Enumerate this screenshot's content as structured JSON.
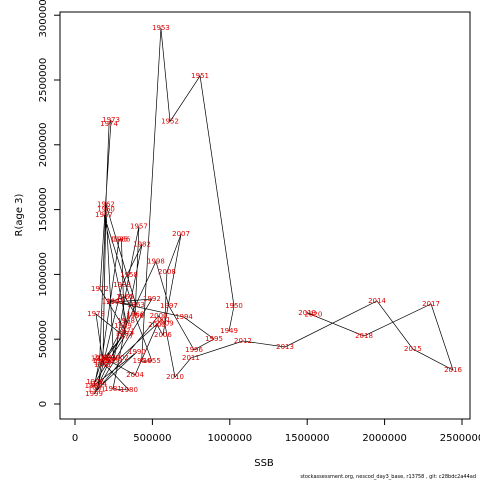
{
  "chart_data": {
    "type": "line",
    "xlabel": "SSB",
    "ylabel": "R(age 3)",
    "footnote": "stockassessment.org, nescod_day3_base, r13758 , git: c28bdc2a44ad",
    "color": "#e00000",
    "xlim": [
      -96900,
      2551700
    ],
    "ylim": [
      -115700,
      3024700
    ],
    "xticks": [
      0,
      500000,
      1000000,
      1500000,
      2000000,
      2500000
    ],
    "yticks": [
      0,
      500000,
      1000000,
      1500000,
      2000000,
      2500000,
      3000000
    ],
    "point_labels": [
      "1949",
      "1950",
      "1951",
      "1952",
      "1953",
      "1954",
      "1955",
      "1956",
      "1957",
      "1958",
      "1959",
      "1960",
      "1961",
      "1962",
      "1963",
      "1964",
      "1965",
      "1966",
      "1967",
      "1968",
      "1969",
      "1970",
      "1971",
      "1972",
      "1973",
      "1974",
      "1975",
      "1976",
      "1977",
      "1978",
      "1979",
      "1980",
      "1981",
      "1982",
      "1983",
      "1984",
      "1985",
      "1986",
      "1987",
      "1988",
      "1989",
      "1990",
      "1991",
      "1992",
      "1993",
      "1994",
      "1995",
      "1996",
      "1997",
      "1998",
      "1999",
      "2000",
      "2001",
      "2002",
      "2003",
      "2004",
      "2005",
      "2006",
      "2007",
      "2008",
      "2009",
      "2010",
      "2011",
      "2012",
      "2013",
      "2014",
      "2015",
      "2016",
      "2017",
      "2018",
      "2019",
      "2020"
    ],
    "x": [
      995000,
      1027000,
      808000,
      614000,
      555000,
      430000,
      497000,
      388000,
      413000,
      349000,
      250000,
      200000,
      180000,
      200000,
      394000,
      230000,
      323000,
      390000,
      187000,
      330000,
      310000,
      200000,
      330000,
      161000,
      233000,
      220000,
      160000,
      130000,
      320000,
      136000,
      180000,
      349000,
      245000,
      433000,
      304000,
      150000,
      285000,
      300000,
      320000,
      170000,
      120000,
      400000,
      140000,
      497000,
      258000,
      704000,
      898000,
      769000,
      607000,
      523000,
      123000,
      540000,
      560000,
      290000,
      180000,
      388000,
      530000,
      568000,
      685000,
      594000,
      580000,
      646000,
      749000,
      1085000,
      1357000,
      1951000,
      2183000,
      2442000,
      2300000,
      1867000,
      1500000,
      1540000
    ],
    "values": [
      563000,
      756000,
      2531000,
      2180000,
      2900000,
      330000,
      332000,
      679000,
      1370000,
      995000,
      330000,
      1500000,
      300000,
      1540000,
      764000,
      790000,
      826000,
      690000,
      1460000,
      640000,
      600000,
      350000,
      560000,
      887000,
      2190000,
      2160000,
      350000,
      170000,
      520000,
      694000,
      320000,
      108000,
      116000,
      1230000,
      918000,
      150000,
      1270000,
      1270000,
      540000,
      330000,
      140000,
      401000,
      110000,
      810000,
      787000,
      671000,
      501000,
      417000,
      756000,
      1100000,
      77000,
      680000,
      650000,
      355000,
      360000,
      224000,
      610000,
      532000,
      1310000,
      1020000,
      620000,
      208000,
      355000,
      486000,
      440000,
      795000,
      424000,
      262000,
      772000,
      525000,
      703000,
      690000
    ]
  }
}
